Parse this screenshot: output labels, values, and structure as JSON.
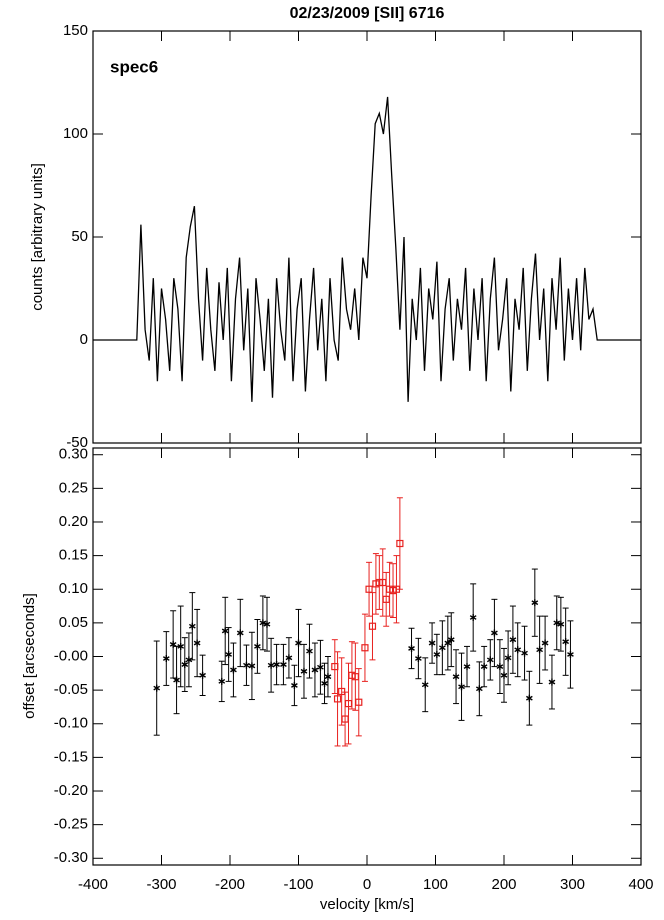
{
  "chart_data": [
    {
      "type": "line",
      "title": "02/23/2009 [SII] 6716",
      "annotation": "spec6",
      "ylabel": "counts [arbitrary units]",
      "color": "#000000",
      "xlim": [
        -400,
        400
      ],
      "xticks": [
        -400,
        -300,
        -200,
        -100,
        0,
        100,
        200,
        300,
        400
      ],
      "xtick_labels": false,
      "ylim": [
        -50,
        150
      ],
      "yticks": [
        -50,
        0,
        50,
        100,
        150
      ],
      "x": [
        -400,
        -336,
        -330,
        -324,
        -318,
        -312,
        -306,
        -300,
        -294,
        -288,
        -282,
        -276,
        -270,
        -264,
        -258,
        -252,
        -246,
        -240,
        -234,
        -228,
        -222,
        -216,
        -210,
        -204,
        -198,
        -192,
        -186,
        -180,
        -174,
        -168,
        -162,
        -156,
        -150,
        -144,
        -138,
        -132,
        -126,
        -120,
        -114,
        -108,
        -102,
        -96,
        -90,
        -84,
        -78,
        -72,
        -66,
        -60,
        -54,
        -48,
        -42,
        -36,
        -30,
        -24,
        -18,
        -12,
        -6,
        0,
        6,
        12,
        18,
        24,
        30,
        36,
        42,
        48,
        54,
        60,
        66,
        72,
        78,
        84,
        90,
        96,
        102,
        108,
        114,
        120,
        126,
        132,
        138,
        144,
        150,
        156,
        162,
        168,
        174,
        180,
        186,
        192,
        198,
        204,
        210,
        216,
        222,
        228,
        234,
        240,
        246,
        252,
        258,
        264,
        270,
        276,
        282,
        288,
        294,
        300,
        306,
        312,
        318,
        324,
        330,
        336,
        400
      ],
      "values": [
        0,
        0,
        56,
        5,
        -10,
        30,
        -20,
        25,
        10,
        -15,
        30,
        15,
        -20,
        40,
        55,
        65,
        20,
        -10,
        35,
        5,
        -15,
        28,
        0,
        35,
        -20,
        20,
        40,
        -5,
        25,
        -30,
        30,
        10,
        -15,
        20,
        -28,
        30,
        5,
        -10,
        40,
        -20,
        15,
        30,
        -25,
        10,
        35,
        -5,
        20,
        -20,
        30,
        0,
        -10,
        40,
        15,
        5,
        25,
        0,
        40,
        30,
        70,
        105,
        110,
        100,
        118,
        80,
        45,
        5,
        50,
        -30,
        20,
        0,
        35,
        -15,
        25,
        10,
        38,
        -20,
        15,
        30,
        -10,
        20,
        5,
        35,
        -15,
        25,
        0,
        30,
        -20,
        20,
        40,
        -5,
        10,
        30,
        -25,
        20,
        5,
        35,
        -15,
        20,
        42,
        0,
        25,
        -20,
        30,
        5,
        40,
        -10,
        25,
        0,
        30,
        -5,
        35,
        10,
        15,
        0,
        0
      ]
    },
    {
      "type": "scatter",
      "xlabel": "velocity [km/s]",
      "ylabel": "offset [arcseconds]",
      "xlim": [
        -400,
        400
      ],
      "xticks": [
        -400,
        -300,
        -200,
        -100,
        0,
        100,
        200,
        300,
        400
      ],
      "xtick_labels": true,
      "ylim": [
        -0.31,
        0.31
      ],
      "yticks": [
        {
          "value": 0.3,
          "label": "0.30"
        },
        {
          "value": 0.25,
          "label": "0.25"
        },
        {
          "value": 0.2,
          "label": "0.20"
        },
        {
          "value": 0.15,
          "label": "0.15"
        },
        {
          "value": 0.1,
          "label": "0.10"
        },
        {
          "value": 0.05,
          "label": "0.05"
        },
        {
          "value": 0,
          "label": "-0.00"
        },
        {
          "value": -0.05,
          "label": "-0.05"
        },
        {
          "value": -0.1,
          "label": "-0.10"
        },
        {
          "value": -0.15,
          "label": "-0.15"
        },
        {
          "value": -0.2,
          "label": "-0.20"
        },
        {
          "value": -0.25,
          "label": "-0.25"
        },
        {
          "value": -0.3,
          "label": "-0.30"
        }
      ],
      "series": [
        {
          "color": "#000000",
          "marker": "asterisk",
          "x": [
            -307,
            -293,
            -283,
            -278,
            -272,
            -266,
            -260,
            -255,
            -248,
            -240,
            -212,
            -207,
            -202,
            -195,
            -185,
            -176,
            -168,
            -160,
            -152,
            -146,
            -140,
            -132,
            -122,
            -114,
            -106,
            -100,
            -92,
            -84,
            -76,
            -68,
            -62,
            -57,
            65,
            75,
            85,
            95,
            102,
            110,
            118,
            123,
            130,
            138,
            146,
            155,
            164,
            171,
            180,
            186,
            194,
            200,
            206,
            213,
            220,
            230,
            237,
            245,
            252,
            260,
            270,
            277,
            283,
            290,
            297
          ],
          "values": [
            -0.047,
            -0.003,
            0.018,
            -0.035,
            0.015,
            -0.012,
            -0.005,
            0.045,
            0.02,
            -0.028,
            -0.037,
            0.038,
            0.003,
            -0.02,
            0.035,
            -0.013,
            -0.014,
            0.015,
            0.05,
            0.048,
            -0.013,
            -0.012,
            -0.012,
            -0.002,
            -0.043,
            0.02,
            -0.022,
            0.008,
            -0.02,
            -0.016,
            -0.04,
            -0.03,
            0.012,
            -0.003,
            -0.042,
            0.02,
            0.003,
            0.013,
            0.02,
            0.025,
            -0.03,
            -0.045,
            -0.015,
            0.058,
            -0.048,
            -0.015,
            -0.005,
            0.035,
            -0.015,
            -0.028,
            -0.002,
            0.025,
            0.01,
            0.005,
            -0.062,
            0.08,
            0.01,
            0.02,
            -0.038,
            0.05,
            0.048,
            0.022,
            0.003
          ],
          "errors": [
            0.07,
            0.04,
            0.05,
            0.05,
            0.06,
            0.04,
            0.04,
            0.05,
            0.05,
            0.03,
            0.03,
            0.05,
            0.04,
            0.04,
            0.05,
            0.03,
            0.05,
            0.04,
            0.04,
            0.04,
            0.04,
            0.03,
            0.03,
            0.03,
            0.03,
            0.05,
            0.04,
            0.04,
            0.04,
            0.04,
            0.03,
            0.03,
            0.03,
            0.03,
            0.04,
            0.03,
            0.03,
            0.04,
            0.04,
            0.04,
            0.04,
            0.05,
            0.03,
            0.05,
            0.04,
            0.03,
            0.03,
            0.05,
            0.04,
            0.04,
            0.04,
            0.05,
            0.04,
            0.04,
            0.04,
            0.05,
            0.05,
            0.04,
            0.04,
            0.04,
            0.04,
            0.05,
            0.05
          ]
        },
        {
          "color": "#e8211f",
          "marker": "square",
          "x": [
            -47,
            -43,
            -37,
            -32,
            -27,
            -22,
            -17,
            -12,
            -3,
            3,
            8,
            13,
            18,
            23,
            28,
            33,
            38,
            43,
            48
          ],
          "values": [
            -0.015,
            -0.063,
            -0.052,
            -0.093,
            -0.07,
            -0.028,
            -0.03,
            -0.068,
            0.013,
            0.1,
            0.045,
            0.108,
            0.11,
            0.11,
            0.085,
            0.1,
            0.098,
            0.1,
            0.168
          ],
          "errors": [
            0.04,
            0.07,
            0.05,
            0.04,
            0.06,
            0.05,
            0.05,
            0.05,
            0.05,
            0.04,
            0.05,
            0.045,
            0.04,
            0.05,
            0.04,
            0.04,
            0.04,
            0.05,
            0.068
          ]
        }
      ]
    }
  ]
}
